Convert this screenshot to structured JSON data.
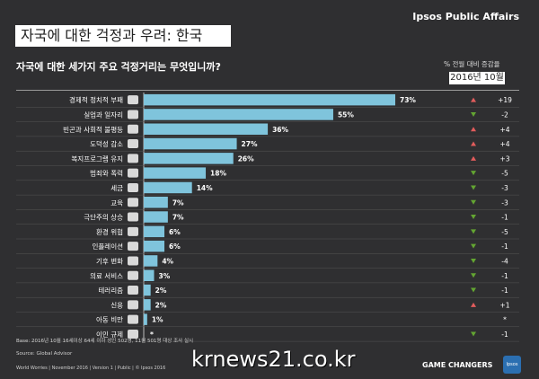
{
  "header": {
    "title": "자국에 대한 걱정과 우려: 한국",
    "brand": "Ipsos Public Affairs",
    "question": "자국에 대한 세가지 주요 걱정거리는 무엇입니까?",
    "change_label": "% 전월 대비 증감율",
    "period": "2016년 10월"
  },
  "colors": {
    "bar": "#7fc4dc",
    "up": "#e25c5c",
    "down": "#63a532",
    "background": "#2f2f31"
  },
  "chart_data": {
    "type": "bar",
    "orientation": "horizontal",
    "categories": [
      "경제적 정치적 부패",
      "실업과 일자리",
      "빈곤과 사회적 불평등",
      "도덕성 감소",
      "복지프로그램 유지",
      "범죄와 폭력",
      "세금",
      "교육",
      "극단주의 상승",
      "환경 위협",
      "인플레이션",
      "기후 변화",
      "의료 서비스",
      "테러리즘",
      "신용",
      "아동 비만",
      "이민 규제"
    ],
    "icons": [
      "money-bag-icon",
      "briefcase-icon",
      "people-icon",
      "thumbs-down-icon",
      "hands-icon",
      "gun-icon",
      "cash-icon",
      "graduation-cap-icon",
      "bomb-icon",
      "factory-icon",
      "chart-icon",
      "globe-icon",
      "pill-icon",
      "target-icon",
      "credit-card-icon",
      "person-icon",
      "luggage-icon"
    ],
    "values": [
      73,
      55,
      36,
      27,
      26,
      18,
      14,
      7,
      7,
      6,
      6,
      4,
      3,
      2,
      2,
      1,
      null
    ],
    "value_labels": [
      "73%",
      "55%",
      "36%",
      "27%",
      "26%",
      "18%",
      "14%",
      "7%",
      "7%",
      "6%",
      "6%",
      "4%",
      "3%",
      "2%",
      "2%",
      "1%",
      "*"
    ],
    "changes": [
      "+19",
      "-2",
      "+4",
      "+4",
      "+3",
      "-5",
      "-3",
      "-3",
      "-1",
      "-5",
      "-1",
      "-4",
      "-1",
      "-1",
      "+1",
      "*",
      "-1"
    ],
    "change_direction": [
      "up",
      "down",
      "up",
      "up",
      "up",
      "down",
      "down",
      "down",
      "down",
      "down",
      "down",
      "down",
      "down",
      "down",
      "up",
      "none",
      "down"
    ],
    "xlim": [
      0,
      80
    ]
  },
  "footer": {
    "base": "Base: 2016년 10월 16세이상 64세 이하 성인 502명, 11월 501명 대상 조사 실시",
    "source": "Source: Global Advisor",
    "meta": "World Worries | November 2016 | Version 1 | Public | © Ipsos 2016",
    "watermark": "krnews21.co.kr",
    "tagline": "GAME CHANGERS",
    "logo": "Ipsos"
  }
}
